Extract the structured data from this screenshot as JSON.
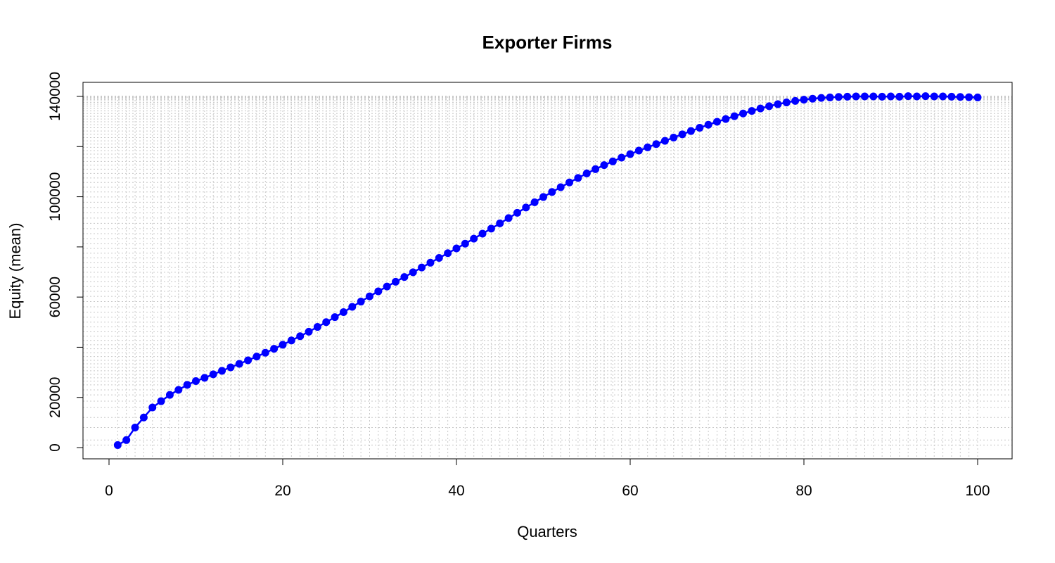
{
  "chart_data": {
    "type": "line",
    "title": "Exporter Firms",
    "xlabel": "Quarters",
    "ylabel": "Equity (mean)",
    "xlim": [
      1,
      100
    ],
    "ylim": [
      0,
      140000
    ],
    "x_ticks": [
      0,
      20,
      40,
      60,
      80,
      100
    ],
    "y_ticks": [
      0,
      20000,
      40000,
      60000,
      80000,
      100000,
      120000,
      140000
    ],
    "x_tick_labels": [
      "0",
      "20",
      "40",
      "60",
      "80",
      "100"
    ],
    "y_tick_labels": [
      "0",
      "20000",
      "",
      "60000",
      "",
      "100000",
      "",
      "140000"
    ],
    "grid": true,
    "series": [
      {
        "color": "#0000ff",
        "marker": "circle",
        "x": [
          1,
          2,
          3,
          4,
          5,
          6,
          7,
          8,
          9,
          10,
          11,
          12,
          13,
          14,
          15,
          16,
          17,
          18,
          19,
          20,
          21,
          22,
          23,
          24,
          25,
          26,
          27,
          28,
          29,
          30,
          31,
          32,
          33,
          34,
          35,
          36,
          37,
          38,
          39,
          40,
          41,
          42,
          43,
          44,
          45,
          46,
          47,
          48,
          49,
          50,
          51,
          52,
          53,
          54,
          55,
          56,
          57,
          58,
          59,
          60,
          61,
          62,
          63,
          64,
          65,
          66,
          67,
          68,
          69,
          70,
          71,
          72,
          73,
          74,
          75,
          76,
          77,
          78,
          79,
          80,
          81,
          82,
          83,
          84,
          85,
          86,
          87,
          88,
          89,
          90,
          91,
          92,
          93,
          94,
          95,
          96,
          97,
          98,
          99,
          100
        ],
        "values": [
          1000,
          3000,
          8000,
          12000,
          16000,
          18500,
          21000,
          23000,
          25000,
          26500,
          27800,
          29200,
          30600,
          32000,
          33400,
          34800,
          36300,
          37800,
          39400,
          41000,
          42700,
          44400,
          46200,
          48100,
          50000,
          52000,
          54000,
          56100,
          58200,
          60300,
          62300,
          64200,
          66100,
          68000,
          69900,
          71800,
          73700,
          75600,
          77500,
          79400,
          81300,
          83300,
          85300,
          87300,
          89400,
          91500,
          93600,
          95700,
          97800,
          99900,
          101900,
          103800,
          105700,
          107500,
          109300,
          111000,
          112600,
          114100,
          115600,
          117000,
          118400,
          119700,
          121000,
          122300,
          123600,
          124900,
          126200,
          127500,
          128700,
          129900,
          131000,
          132100,
          133200,
          134200,
          135200,
          136100,
          136900,
          137600,
          138200,
          138700,
          139100,
          139400,
          139600,
          139800,
          139900,
          140000,
          140000,
          140000,
          139900,
          140000,
          139900,
          140100,
          140000,
          140100,
          140000,
          140000,
          139900,
          139800,
          139700,
          139600
        ]
      }
    ]
  }
}
